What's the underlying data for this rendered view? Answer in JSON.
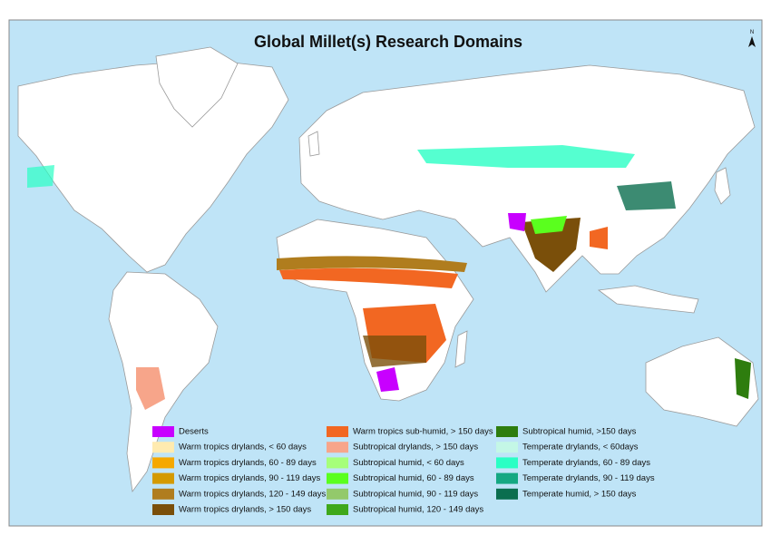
{
  "title": "Global Millet(s) Research Domains",
  "north_label": "N",
  "legend": [
    {
      "label": "Deserts",
      "color": "#c800ff"
    },
    {
      "label": "Warm tropics drylands, < 60 days",
      "color": "#ffebb0"
    },
    {
      "label": "Warm tropics drylands, 60 - 89 days",
      "color": "#f5a800"
    },
    {
      "label": "Warm tropics drylands, 90 - 119 days",
      "color": "#d49a00"
    },
    {
      "label": "Warm tropics drylands, 120 - 149 days",
      "color": "#b07d1e"
    },
    {
      "label": "Warm tropics drylands, > 150 days",
      "color": "#7a4f0a"
    },
    {
      "label": "Warm tropics sub-humid, > 150 days",
      "color": "#f26722"
    },
    {
      "label": "Subtropical drylands, > 150 days",
      "color": "#f7a58a"
    },
    {
      "label": "Subtropical humid, < 60 days",
      "color": "#a6ff7a"
    },
    {
      "label": "Subtropical humid, 60 - 89 days",
      "color": "#5aff1e"
    },
    {
      "label": "Subtropical humid, 90 - 119 days",
      "color": "#93c96b"
    },
    {
      "label": "Subtropical humid, 120 - 149 days",
      "color": "#3fa81b"
    },
    {
      "label": "Subtropical humid, >150 days",
      "color": "#2e7d0e"
    },
    {
      "label": "Temperate drylands, < 60days",
      "color": "#c4f7e6"
    },
    {
      "label": "Temperate drylands, 60 - 89 days",
      "color": "#2affc4"
    },
    {
      "label": "Temperate drylands, 90 - 119 days",
      "color": "#14a882"
    },
    {
      "label": "Temperate humid, > 150 days",
      "color": "#0b6e4f"
    }
  ]
}
